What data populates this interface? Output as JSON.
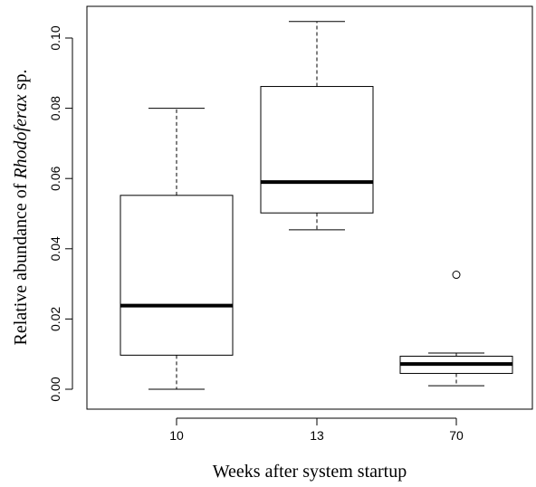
{
  "chart_data": {
    "type": "boxplot",
    "title": "",
    "xlabel": "Weeks after system startup",
    "ylabel": {
      "prefix": "Relative abundance of ",
      "italic": "Rhodoferax",
      "suffix": " sp."
    },
    "ylim": [
      -0.003,
      0.108
    ],
    "y_ticks": [
      0.0,
      0.02,
      0.04,
      0.06,
      0.08,
      0.1
    ],
    "y_tick_labels": [
      "0.00",
      "0.02",
      "0.04",
      "0.06",
      "0.08",
      "0.10"
    ],
    "grid": false,
    "categories": [
      "10",
      "13",
      "70"
    ],
    "boxes": [
      {
        "category": "10",
        "whisker_low": 0.0,
        "q1": 0.0097,
        "median": 0.0238,
        "q3": 0.0552,
        "whisker_high": 0.08,
        "outliers": []
      },
      {
        "category": "13",
        "whisker_low": 0.0454,
        "q1": 0.0502,
        "median": 0.059,
        "q3": 0.0862,
        "whisker_high": 0.1047,
        "outliers": []
      },
      {
        "category": "70",
        "whisker_low": 0.001,
        "q1": 0.0045,
        "median": 0.0072,
        "q3": 0.0094,
        "whisker_high": 0.0103,
        "outliers": [
          0.0326
        ]
      }
    ]
  }
}
